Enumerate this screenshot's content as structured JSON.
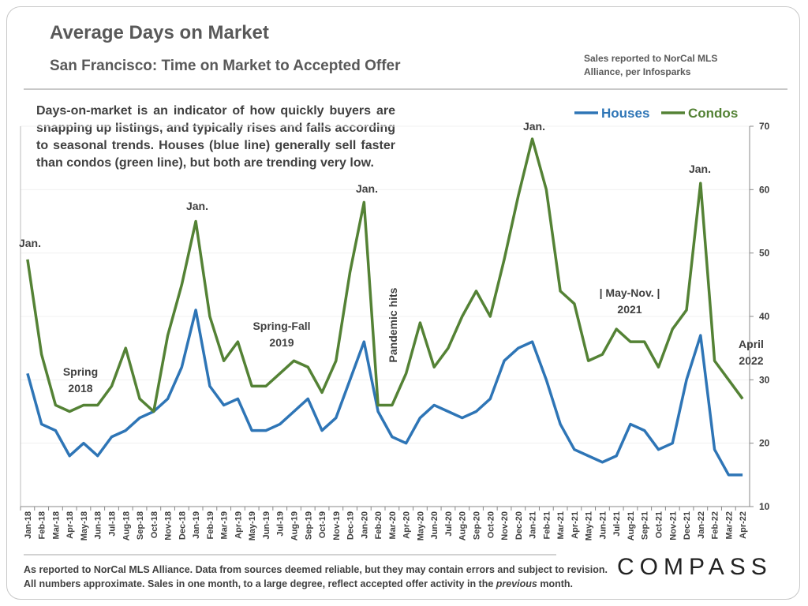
{
  "chart_data": {
    "type": "line",
    "title": "Average Days on Market",
    "subtitle": "San Francisco: Time on Market to Accepted Offer",
    "source_note": "Sales reported to NorCal MLS Alliance, per Infosparks",
    "description": "Days-on-market is an indicator of how quickly buyers are snapping up listings, and typically rises and falls according to seasonal trends. Houses (blue line) generally sell faster than condos (green line), but both are trending very low.",
    "footnote": {
      "line1": "As reported to NorCal MLS Alliance. Data from sources deemed reliable, but they may contain errors and subject to revision.",
      "line2": [
        "All numbers approximate. Sales in one month, to a large degree, reflect accepted offer activity in the ",
        "previous",
        " month."
      ]
    },
    "logo": "COMPASS",
    "categories": [
      "Jan-18",
      "Feb-18",
      "Mar-18",
      "Apr-18",
      "May-18",
      "Jun-18",
      "Jul-18",
      "Aug-18",
      "Sep-18",
      "Oct-18",
      "Nov-18",
      "Dec-18",
      "Jan-19",
      "Feb-19",
      "Mar-19",
      "Apr-19",
      "May-19",
      "Jun-19",
      "Jul-19",
      "Aug-19",
      "Sep-19",
      "Oct-19",
      "Nov-19",
      "Dec-19",
      "Jan-20",
      "Feb-20",
      "Mar-20",
      "Apr-20",
      "May-20",
      "Jun-20",
      "Jul-20",
      "Aug-20",
      "Sep-20",
      "Oct-20",
      "Nov-20",
      "Dec-20",
      "Jan-21",
      "Feb-21",
      "Mar-21",
      "Apr-21",
      "May-21",
      "Jun-21",
      "Jul-21",
      "Aug-21",
      "Sep-21",
      "Oct-21",
      "Nov-21",
      "Dec-21",
      "Jan-22",
      "Feb-22",
      "Mar-22",
      "Apr-22"
    ],
    "series": [
      {
        "name": "Houses",
        "color": "#2e75b6",
        "values": [
          31,
          23,
          22,
          18,
          20,
          18,
          21,
          22,
          24,
          25,
          27,
          32,
          41,
          29,
          26,
          27,
          22,
          22,
          23,
          25,
          27,
          22,
          24,
          30,
          36,
          25,
          21,
          20,
          24,
          26,
          25,
          24,
          25,
          27,
          33,
          35,
          36,
          30,
          23,
          19,
          18,
          17,
          18,
          23,
          22,
          19,
          20,
          30,
          37,
          19,
          15,
          15
        ]
      },
      {
        "name": "Condos",
        "color": "#548235",
        "values": [
          49,
          34,
          26,
          25,
          26,
          26,
          29,
          35,
          27,
          25,
          37,
          45,
          55,
          40,
          33,
          36,
          29,
          29,
          31,
          33,
          32,
          28,
          33,
          47,
          58,
          26,
          26,
          31,
          39,
          32,
          35,
          40,
          44,
          40,
          49,
          59,
          68,
          60,
          44,
          42,
          33,
          34,
          38,
          36,
          36,
          32,
          38,
          41,
          61,
          33,
          30,
          27
        ]
      }
    ],
    "ylim": [
      10,
      70
    ],
    "yticks": [
      10,
      20,
      30,
      40,
      50,
      60,
      70
    ],
    "y_axis_side": "right",
    "grid": true,
    "legend": "top-right",
    "annotations": [
      {
        "lines": [
          "Jan."
        ]
      },
      {
        "lines": [
          "Spring",
          "2018"
        ]
      },
      {
        "lines": [
          "Jan."
        ]
      },
      {
        "lines": [
          "Spring-Fall",
          "2019"
        ]
      },
      {
        "lines": [
          "Jan."
        ]
      },
      {
        "lines": [
          "Pandemic hits"
        ]
      },
      {
        "lines": [
          "Jan."
        ]
      },
      {
        "lines": [
          "|  May-Nov.  |",
          "2021"
        ]
      },
      {
        "lines": [
          "Jan."
        ]
      },
      {
        "lines": [
          "April",
          "2022"
        ]
      }
    ]
  }
}
